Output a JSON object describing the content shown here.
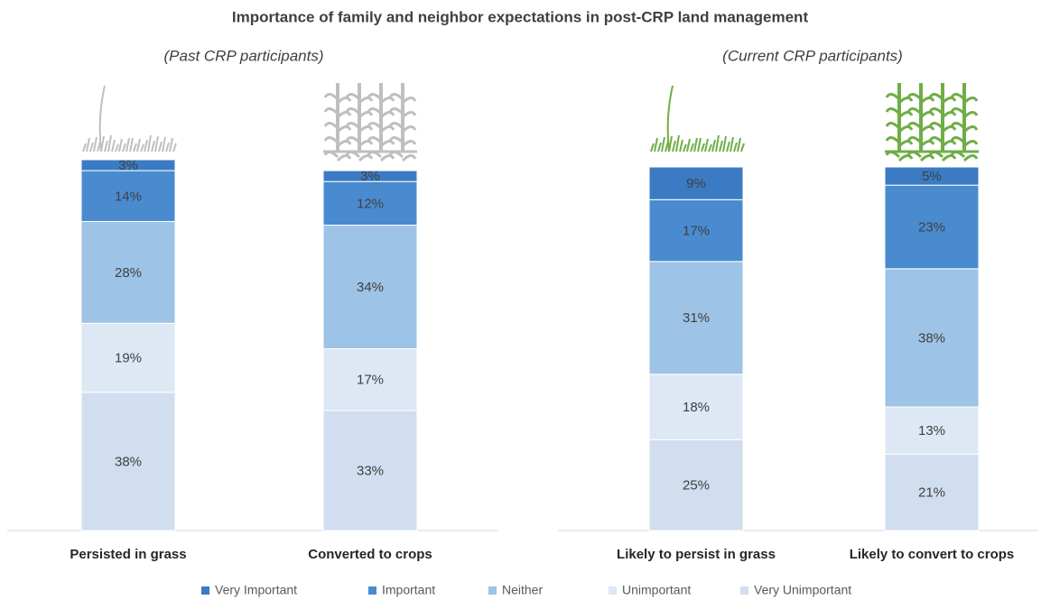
{
  "chart_data": [
    {
      "type": "bar",
      "stacked": true,
      "legend": "bottom",
      "title": "Importance of family and neighbor expectations in post-CRP land management",
      "subtitle": "(Past CRP participants)",
      "categories": [
        "Persisted in grass",
        "Converted to crops"
      ],
      "ylim": [
        0,
        102
      ],
      "series": [
        {
          "name": "Very Unimportant",
          "color": "#d0deef",
          "values": [
            38,
            33
          ],
          "value_labels": [
            "38%",
            "33%"
          ]
        },
        {
          "name": "Unimportant",
          "color": "#dde8f4",
          "values": [
            19,
            17
          ],
          "value_labels": [
            "19%",
            "17%"
          ]
        },
        {
          "name": "Neither",
          "color": "#9dc3e6",
          "values": [
            28,
            34
          ],
          "value_labels": [
            "28%",
            "34%"
          ]
        },
        {
          "name": "Important",
          "color": "#4a8bd0",
          "values": [
            14,
            12
          ],
          "value_labels": [
            "14%",
            "12%"
          ]
        },
        {
          "name": "Very Important",
          "color": "#3b7bc4",
          "values": [
            3,
            3
          ],
          "value_labels": [
            "3%",
            "3%"
          ]
        }
      ]
    },
    {
      "type": "bar",
      "stacked": true,
      "subtitle": "(Current CRP participants)",
      "categories": [
        "Likely to persist in grass",
        "Likely to convert to crops"
      ],
      "ylim": [
        0,
        102
      ],
      "series": [
        {
          "color": "#d0deef",
          "values": [
            25,
            21
          ],
          "value_labels": [
            "25%",
            "21%"
          ]
        },
        {
          "color": "#dde8f4",
          "values": [
            18,
            13
          ],
          "value_labels": [
            "18%",
            "13%"
          ]
        },
        {
          "color": "#9dc3e6",
          "values": [
            31,
            38
          ],
          "value_labels": [
            "31%",
            "38%"
          ]
        },
        {
          "color": "#4a8bd0",
          "values": [
            17,
            23
          ],
          "value_labels": [
            "17%",
            "23%"
          ]
        },
        {
          "color": "#3b7bc4",
          "values": [
            9,
            5
          ],
          "value_labels": [
            "9%",
            "5%"
          ]
        }
      ]
    }
  ]
}
